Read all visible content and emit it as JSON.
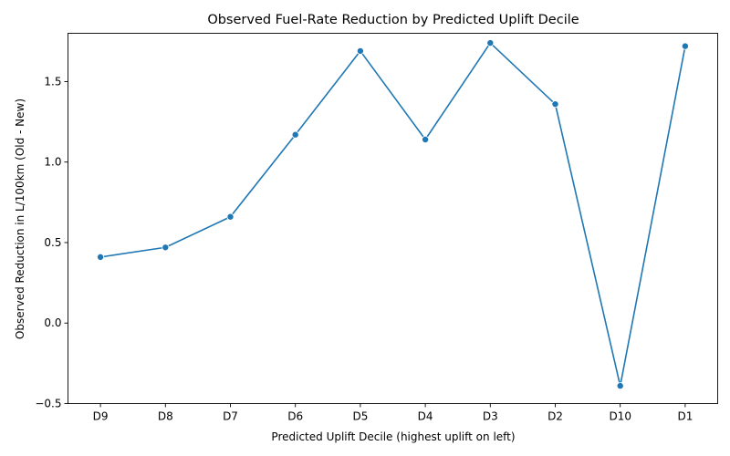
{
  "chart_data": {
    "type": "line",
    "title": "Observed Fuel-Rate Reduction by Predicted Uplift Decile",
    "xlabel": "Predicted Uplift Decile (highest uplift on left)",
    "ylabel": "Observed Reduction in L/100km (Old - New)",
    "categories": [
      "D9",
      "D8",
      "D7",
      "D6",
      "D5",
      "D4",
      "D3",
      "D2",
      "D10",
      "D1"
    ],
    "series": [
      {
        "values": [
          0.41,
          0.47,
          0.66,
          1.17,
          1.69,
          1.14,
          1.74,
          1.36,
          -0.39,
          1.72
        ],
        "color": "#1f77b4",
        "marker": "circle"
      }
    ],
    "ylim": [
      -0.5,
      1.8
    ],
    "yticks": [
      -0.5,
      0.0,
      0.5,
      1.0,
      1.5
    ],
    "ytick_labels": [
      "−0.5",
      "0.0",
      "0.5",
      "1.0",
      "1.5"
    ],
    "grid": false,
    "legend": "none"
  }
}
